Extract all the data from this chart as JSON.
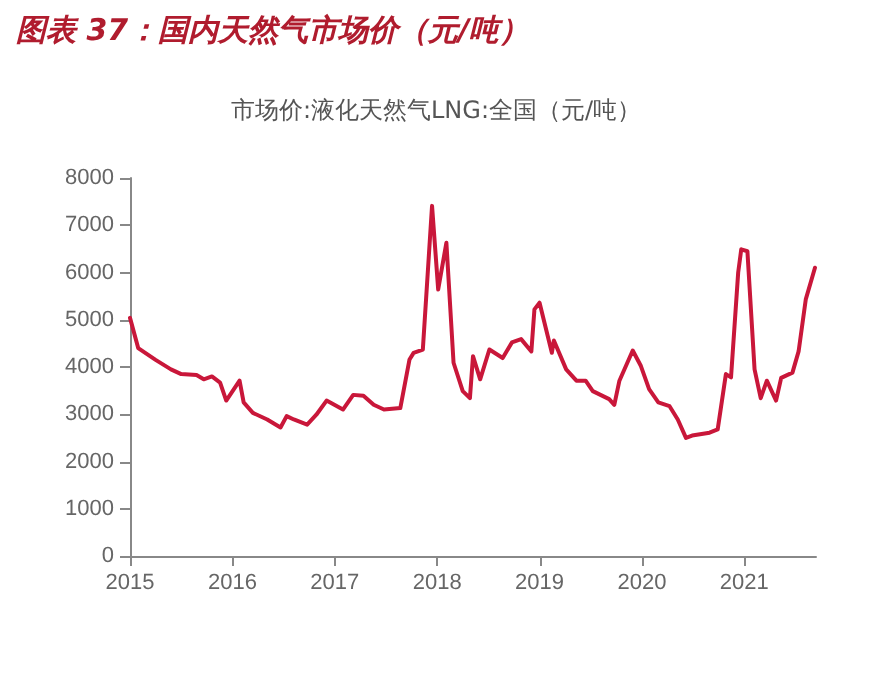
{
  "chart_data": {
    "type": "line",
    "title": "图表 37：国内天然气市场价（元/吨）",
    "subtitle": "市场价:液化天然气LNG:全国（元/吨）",
    "x": [
      2015.0,
      2015.08,
      2015.25,
      2015.4,
      2015.5,
      2015.65,
      2015.72,
      2015.8,
      2015.88,
      2015.94,
      2016.07,
      2016.11,
      2016.2,
      2016.34,
      2016.47,
      2016.53,
      2016.6,
      2016.73,
      2016.82,
      2016.92,
      2017.08,
      2017.18,
      2017.28,
      2017.38,
      2017.48,
      2017.64,
      2017.73,
      2017.77,
      2017.86,
      2017.95,
      2018.01,
      2018.09,
      2018.16,
      2018.25,
      2018.32,
      2018.35,
      2018.42,
      2018.51,
      2018.64,
      2018.73,
      2018.82,
      2018.92,
      2018.95,
      2019.0,
      2019.12,
      2019.14,
      2019.26,
      2019.36,
      2019.45,
      2019.52,
      2019.68,
      2019.73,
      2019.78,
      2019.91,
      2019.99,
      2020.07,
      2020.16,
      2020.27,
      2020.35,
      2020.43,
      2020.49,
      2020.66,
      2020.74,
      2020.82,
      2020.87,
      2020.94,
      2020.97,
      2021.03,
      2021.1,
      2021.16,
      2021.22,
      2021.31,
      2021.36,
      2021.47,
      2021.53,
      2021.6,
      2021.69
    ],
    "series": [
      {
        "color": "#c9173a",
        "values": [
          5040,
          4400,
          4150,
          3950,
          3850,
          3830,
          3740,
          3800,
          3670,
          3290,
          3710,
          3250,
          3030,
          2890,
          2720,
          2960,
          2890,
          2780,
          2990,
          3290,
          3100,
          3410,
          3390,
          3200,
          3100,
          3130,
          4160,
          4300,
          4370,
          7410,
          5640,
          6630,
          4090,
          3490,
          3340,
          4230,
          3740,
          4370,
          4190,
          4520,
          4590,
          4330,
          5220,
          5360,
          4300,
          4560,
          3950,
          3710,
          3710,
          3490,
          3320,
          3200,
          3710,
          4350,
          4020,
          3530,
          3250,
          3170,
          2890,
          2500,
          2550,
          2610,
          2680,
          3850,
          3780,
          6000,
          6490,
          6450,
          3950,
          3340,
          3710,
          3290,
          3770,
          3880,
          4330,
          5430,
          6100
        ]
      }
    ],
    "xlim": [
      2015,
      2021.7
    ],
    "xticks": [
      2015,
      2016,
      2017,
      2018,
      2019,
      2020,
      2021
    ],
    "ylim": [
      0,
      8000
    ],
    "yticks": [
      0,
      1000,
      2000,
      3000,
      4000,
      5000,
      6000,
      7000,
      8000
    ],
    "marker": "none",
    "line_style": "solid"
  }
}
